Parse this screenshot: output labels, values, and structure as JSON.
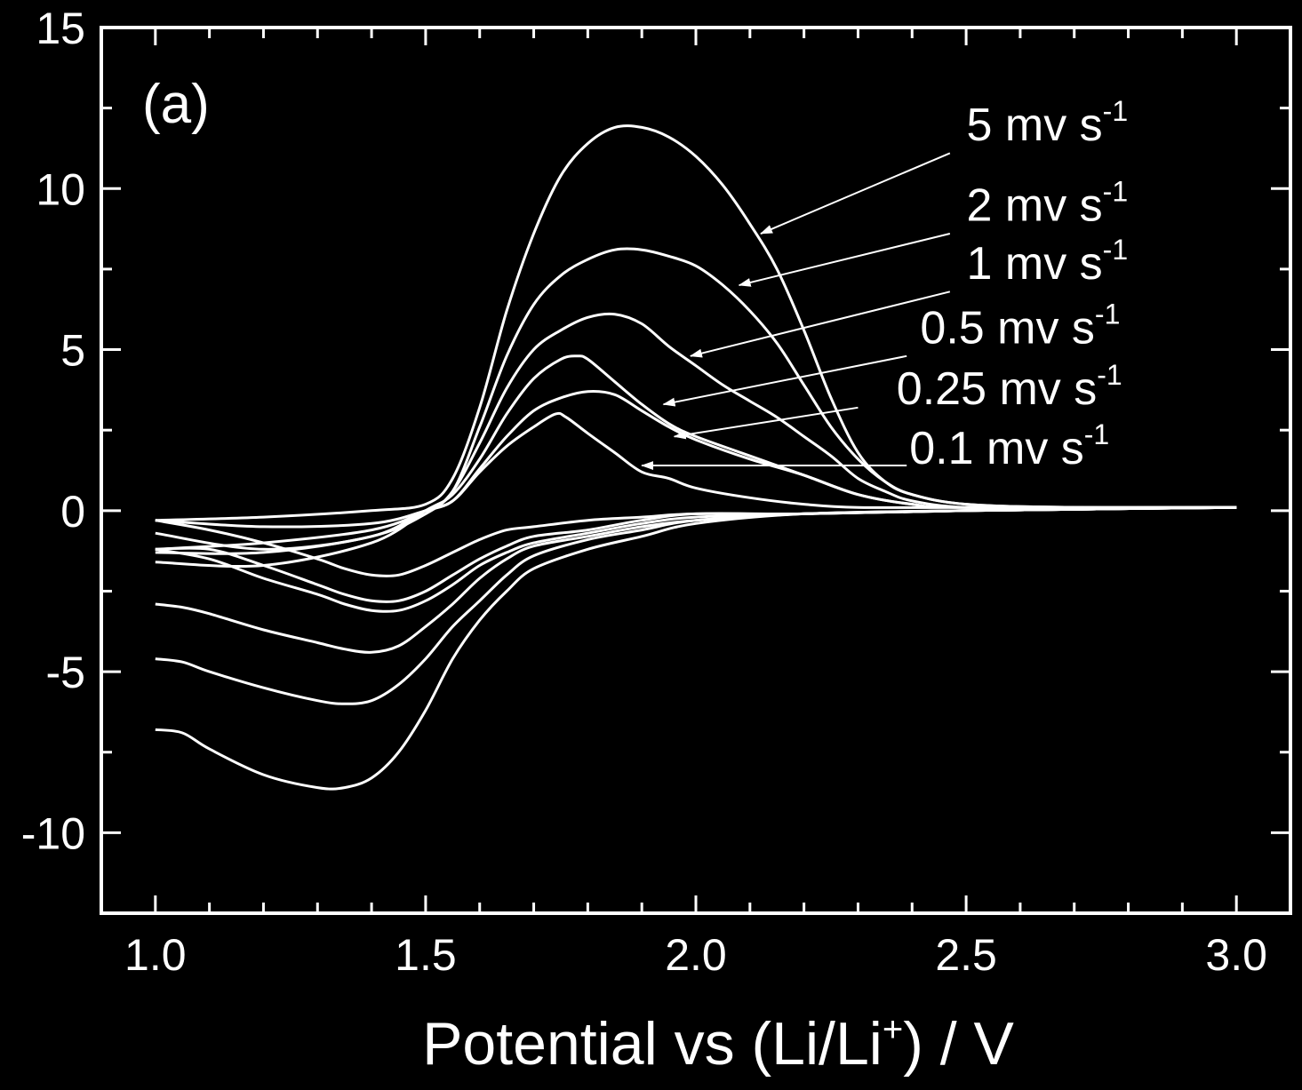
{
  "chart_data": {
    "type": "line",
    "panel_label": "(a)",
    "xlabel": {
      "main": "Potential vs (Li/Li",
      "sup": "+",
      "tail": ") / V"
    },
    "ylabel": "",
    "xlim": [
      0.9,
      3.1
    ],
    "ylim": [
      -12.5,
      15
    ],
    "x_ticks": [
      "1.0",
      "1.5",
      "2.0",
      "2.5",
      "3.0"
    ],
    "x_tick_values": [
      1.0,
      1.5,
      2.0,
      2.5,
      3.0
    ],
    "y_ticks": [
      "15",
      "10",
      "5",
      "0",
      "-5",
      "-10"
    ],
    "y_tick_values": [
      15,
      10,
      5,
      0,
      -5,
      -10
    ],
    "grid": false,
    "colors": {
      "background": "#000000",
      "foreground": "#ffffff"
    },
    "series": [
      {
        "name": "5 mv s",
        "sup": "-1",
        "anodic": [
          [
            1.0,
            -0.3
          ],
          [
            1.2,
            -0.2
          ],
          [
            1.4,
            0.0
          ],
          [
            1.5,
            0.2
          ],
          [
            1.55,
            1.0
          ],
          [
            1.6,
            3.2
          ],
          [
            1.65,
            6.2
          ],
          [
            1.7,
            8.6
          ],
          [
            1.75,
            10.4
          ],
          [
            1.8,
            11.4
          ],
          [
            1.85,
            11.9
          ],
          [
            1.9,
            11.9
          ],
          [
            1.95,
            11.6
          ],
          [
            2.0,
            11.0
          ],
          [
            2.05,
            10.1
          ],
          [
            2.1,
            8.9
          ],
          [
            2.15,
            7.5
          ],
          [
            2.2,
            5.6
          ],
          [
            2.25,
            3.5
          ],
          [
            2.3,
            1.8
          ],
          [
            2.35,
            0.9
          ],
          [
            2.4,
            0.5
          ],
          [
            2.5,
            0.2
          ],
          [
            2.7,
            0.1
          ],
          [
            3.0,
            0.1
          ]
        ],
        "cathodic": [
          [
            3.0,
            0.1
          ],
          [
            2.5,
            0.0
          ],
          [
            2.2,
            -0.1
          ],
          [
            2.0,
            -0.4
          ],
          [
            1.9,
            -0.8
          ],
          [
            1.8,
            -1.2
          ],
          [
            1.7,
            -1.8
          ],
          [
            1.65,
            -2.5
          ],
          [
            1.6,
            -3.4
          ],
          [
            1.55,
            -4.6
          ],
          [
            1.5,
            -6.2
          ],
          [
            1.45,
            -7.5
          ],
          [
            1.4,
            -8.3
          ],
          [
            1.35,
            -8.6
          ],
          [
            1.3,
            -8.6
          ],
          [
            1.2,
            -8.2
          ],
          [
            1.1,
            -7.4
          ],
          [
            1.05,
            -6.9
          ],
          [
            1.0,
            -6.8
          ]
        ],
        "label_value": [
          2.65,
          11.5
        ],
        "arrow_from": [
          2.47,
          11.1
        ],
        "arrow_to": [
          2.12,
          8.6
        ]
      },
      {
        "name": "2 mv s",
        "sup": "-1",
        "anodic": [
          [
            1.0,
            -1.2
          ],
          [
            1.2,
            -1.0
          ],
          [
            1.4,
            -0.6
          ],
          [
            1.5,
            0.0
          ],
          [
            1.55,
            0.6
          ],
          [
            1.6,
            2.6
          ],
          [
            1.65,
            4.8
          ],
          [
            1.7,
            6.4
          ],
          [
            1.75,
            7.3
          ],
          [
            1.8,
            7.8
          ],
          [
            1.85,
            8.1
          ],
          [
            1.9,
            8.1
          ],
          [
            1.95,
            7.9
          ],
          [
            2.0,
            7.6
          ],
          [
            2.05,
            7.0
          ],
          [
            2.1,
            6.2
          ],
          [
            2.15,
            5.2
          ],
          [
            2.2,
            3.9
          ],
          [
            2.25,
            2.6
          ],
          [
            2.3,
            1.6
          ],
          [
            2.35,
            0.9
          ],
          [
            2.4,
            0.5
          ],
          [
            2.5,
            0.2
          ],
          [
            2.7,
            0.1
          ],
          [
            3.0,
            0.1
          ]
        ],
        "cathodic": [
          [
            3.0,
            0.1
          ],
          [
            2.5,
            0.0
          ],
          [
            2.2,
            -0.1
          ],
          [
            2.0,
            -0.3
          ],
          [
            1.9,
            -0.6
          ],
          [
            1.8,
            -0.9
          ],
          [
            1.7,
            -1.4
          ],
          [
            1.65,
            -2.0
          ],
          [
            1.6,
            -2.8
          ],
          [
            1.55,
            -3.6
          ],
          [
            1.5,
            -4.6
          ],
          [
            1.45,
            -5.4
          ],
          [
            1.4,
            -5.9
          ],
          [
            1.35,
            -6.0
          ],
          [
            1.3,
            -5.9
          ],
          [
            1.2,
            -5.5
          ],
          [
            1.1,
            -5.0
          ],
          [
            1.05,
            -4.7
          ],
          [
            1.0,
            -4.6
          ]
        ],
        "label_value": [
          2.65,
          9.0
        ],
        "arrow_from": [
          2.47,
          8.6
        ],
        "arrow_to": [
          2.08,
          7.0
        ]
      },
      {
        "name": "1 mv s",
        "sup": "-1",
        "anodic": [
          [
            1.0,
            -1.3
          ],
          [
            1.2,
            -1.3
          ],
          [
            1.4,
            -0.8
          ],
          [
            1.5,
            -0.1
          ],
          [
            1.55,
            0.6
          ],
          [
            1.6,
            2.1
          ],
          [
            1.65,
            3.8
          ],
          [
            1.7,
            5.0
          ],
          [
            1.75,
            5.6
          ],
          [
            1.8,
            6.0
          ],
          [
            1.85,
            6.1
          ],
          [
            1.9,
            5.8
          ],
          [
            1.95,
            5.1
          ],
          [
            2.0,
            4.5
          ],
          [
            2.05,
            3.9
          ],
          [
            2.1,
            3.4
          ],
          [
            2.15,
            2.9
          ],
          [
            2.2,
            2.3
          ],
          [
            2.25,
            1.7
          ],
          [
            2.3,
            1.0
          ],
          [
            2.35,
            0.6
          ],
          [
            2.4,
            0.3
          ],
          [
            2.5,
            0.1
          ],
          [
            2.7,
            0.1
          ],
          [
            3.0,
            0.1
          ]
        ],
        "cathodic": [
          [
            3.0,
            0.1
          ],
          [
            2.5,
            0.0
          ],
          [
            2.2,
            -0.1
          ],
          [
            2.0,
            -0.3
          ],
          [
            1.9,
            -0.5
          ],
          [
            1.8,
            -0.8
          ],
          [
            1.7,
            -1.1
          ],
          [
            1.65,
            -1.5
          ],
          [
            1.6,
            -2.1
          ],
          [
            1.55,
            -2.9
          ],
          [
            1.5,
            -3.6
          ],
          [
            1.45,
            -4.2
          ],
          [
            1.4,
            -4.4
          ],
          [
            1.35,
            -4.3
          ],
          [
            1.3,
            -4.1
          ],
          [
            1.2,
            -3.7
          ],
          [
            1.1,
            -3.2
          ],
          [
            1.05,
            -3.0
          ],
          [
            1.0,
            -2.9
          ]
        ],
        "label_value": [
          2.65,
          7.2
        ],
        "arrow_from": [
          2.47,
          6.8
        ],
        "arrow_to": [
          1.99,
          4.8
        ]
      },
      {
        "name": "0.5 mv s",
        "sup": "-1",
        "anodic": [
          [
            1.0,
            -1.6
          ],
          [
            1.2,
            -1.7
          ],
          [
            1.4,
            -1.0
          ],
          [
            1.5,
            0.0
          ],
          [
            1.55,
            0.5
          ],
          [
            1.6,
            1.6
          ],
          [
            1.65,
            3.0
          ],
          [
            1.7,
            4.1
          ],
          [
            1.75,
            4.7
          ],
          [
            1.78,
            4.8
          ],
          [
            1.8,
            4.7
          ],
          [
            1.85,
            4.0
          ],
          [
            1.9,
            3.3
          ],
          [
            1.95,
            2.7
          ],
          [
            2.0,
            2.3
          ],
          [
            2.1,
            1.7
          ],
          [
            2.2,
            1.1
          ],
          [
            2.3,
            0.5
          ],
          [
            2.4,
            0.2
          ],
          [
            2.5,
            0.1
          ],
          [
            3.0,
            0.1
          ]
        ],
        "cathodic": [
          [
            3.0,
            0.1
          ],
          [
            2.5,
            0.0
          ],
          [
            2.2,
            -0.1
          ],
          [
            2.0,
            -0.2
          ],
          [
            1.9,
            -0.4
          ],
          [
            1.8,
            -0.7
          ],
          [
            1.7,
            -1.0
          ],
          [
            1.65,
            -1.3
          ],
          [
            1.6,
            -1.7
          ],
          [
            1.55,
            -2.3
          ],
          [
            1.5,
            -2.8
          ],
          [
            1.45,
            -3.1
          ],
          [
            1.4,
            -3.1
          ],
          [
            1.35,
            -2.9
          ],
          [
            1.3,
            -2.6
          ],
          [
            1.2,
            -2.1
          ],
          [
            1.1,
            -1.5
          ],
          [
            1.0,
            -1.2
          ]
        ],
        "label_value": [
          2.6,
          5.2
        ],
        "arrow_from": [
          2.39,
          4.8
        ],
        "arrow_to": [
          1.94,
          3.3
        ]
      },
      {
        "name": "0.25 mv s",
        "sup": "-1",
        "anodic": [
          [
            1.0,
            -0.7
          ],
          [
            1.2,
            -1.2
          ],
          [
            1.4,
            -0.8
          ],
          [
            1.5,
            0.0
          ],
          [
            1.55,
            0.3
          ],
          [
            1.6,
            1.3
          ],
          [
            1.65,
            2.3
          ],
          [
            1.7,
            3.1
          ],
          [
            1.75,
            3.5
          ],
          [
            1.8,
            3.7
          ],
          [
            1.85,
            3.6
          ],
          [
            1.9,
            3.1
          ],
          [
            1.95,
            2.6
          ],
          [
            2.0,
            2.2
          ],
          [
            2.1,
            1.6
          ],
          [
            2.2,
            1.1
          ],
          [
            2.3,
            0.5
          ],
          [
            2.4,
            0.2
          ],
          [
            2.5,
            0.1
          ],
          [
            3.0,
            0.1
          ]
        ],
        "cathodic": [
          [
            3.0,
            0.1
          ],
          [
            2.5,
            0.0
          ],
          [
            2.2,
            -0.1
          ],
          [
            2.0,
            -0.1
          ],
          [
            1.9,
            -0.3
          ],
          [
            1.8,
            -0.6
          ],
          [
            1.7,
            -0.8
          ],
          [
            1.65,
            -1.1
          ],
          [
            1.6,
            -1.5
          ],
          [
            1.55,
            -2.0
          ],
          [
            1.5,
            -2.5
          ],
          [
            1.45,
            -2.8
          ],
          [
            1.4,
            -2.8
          ],
          [
            1.35,
            -2.6
          ],
          [
            1.3,
            -2.3
          ],
          [
            1.2,
            -1.7
          ],
          [
            1.1,
            -1.2
          ],
          [
            1.0,
            -1.2
          ]
        ],
        "label_value": [
          2.58,
          3.3
        ],
        "arrow_from": [
          2.3,
          3.2
        ],
        "arrow_to": [
          1.96,
          2.3
        ]
      },
      {
        "name": "0.1 mv s",
        "sup": "-1",
        "anodic": [
          [
            1.0,
            -0.3
          ],
          [
            1.2,
            -0.5
          ],
          [
            1.4,
            -0.4
          ],
          [
            1.5,
            0.0
          ],
          [
            1.55,
            0.3
          ],
          [
            1.6,
            1.2
          ],
          [
            1.65,
            2.0
          ],
          [
            1.7,
            2.6
          ],
          [
            1.74,
            3.0
          ],
          [
            1.76,
            2.9
          ],
          [
            1.8,
            2.4
          ],
          [
            1.85,
            1.8
          ],
          [
            1.9,
            1.2
          ],
          [
            1.95,
            1.0
          ],
          [
            2.0,
            0.7
          ],
          [
            2.1,
            0.4
          ],
          [
            2.2,
            0.2
          ],
          [
            2.3,
            0.1
          ],
          [
            2.5,
            0.1
          ],
          [
            3.0,
            0.1
          ]
        ],
        "cathodic": [
          [
            3.0,
            0.1
          ],
          [
            2.5,
            0.0
          ],
          [
            2.2,
            -0.1
          ],
          [
            2.0,
            -0.1
          ],
          [
            1.9,
            -0.2
          ],
          [
            1.8,
            -0.3
          ],
          [
            1.7,
            -0.5
          ],
          [
            1.65,
            -0.6
          ],
          [
            1.6,
            -0.9
          ],
          [
            1.55,
            -1.3
          ],
          [
            1.5,
            -1.7
          ],
          [
            1.45,
            -2.0
          ],
          [
            1.4,
            -2.0
          ],
          [
            1.35,
            -1.8
          ],
          [
            1.3,
            -1.5
          ],
          [
            1.2,
            -1.0
          ],
          [
            1.1,
            -0.6
          ],
          [
            1.0,
            -0.3
          ]
        ],
        "label_value": [
          2.58,
          1.45
        ],
        "arrow_from": [
          2.39,
          1.4
        ],
        "arrow_to": [
          1.9,
          1.4
        ]
      }
    ]
  }
}
